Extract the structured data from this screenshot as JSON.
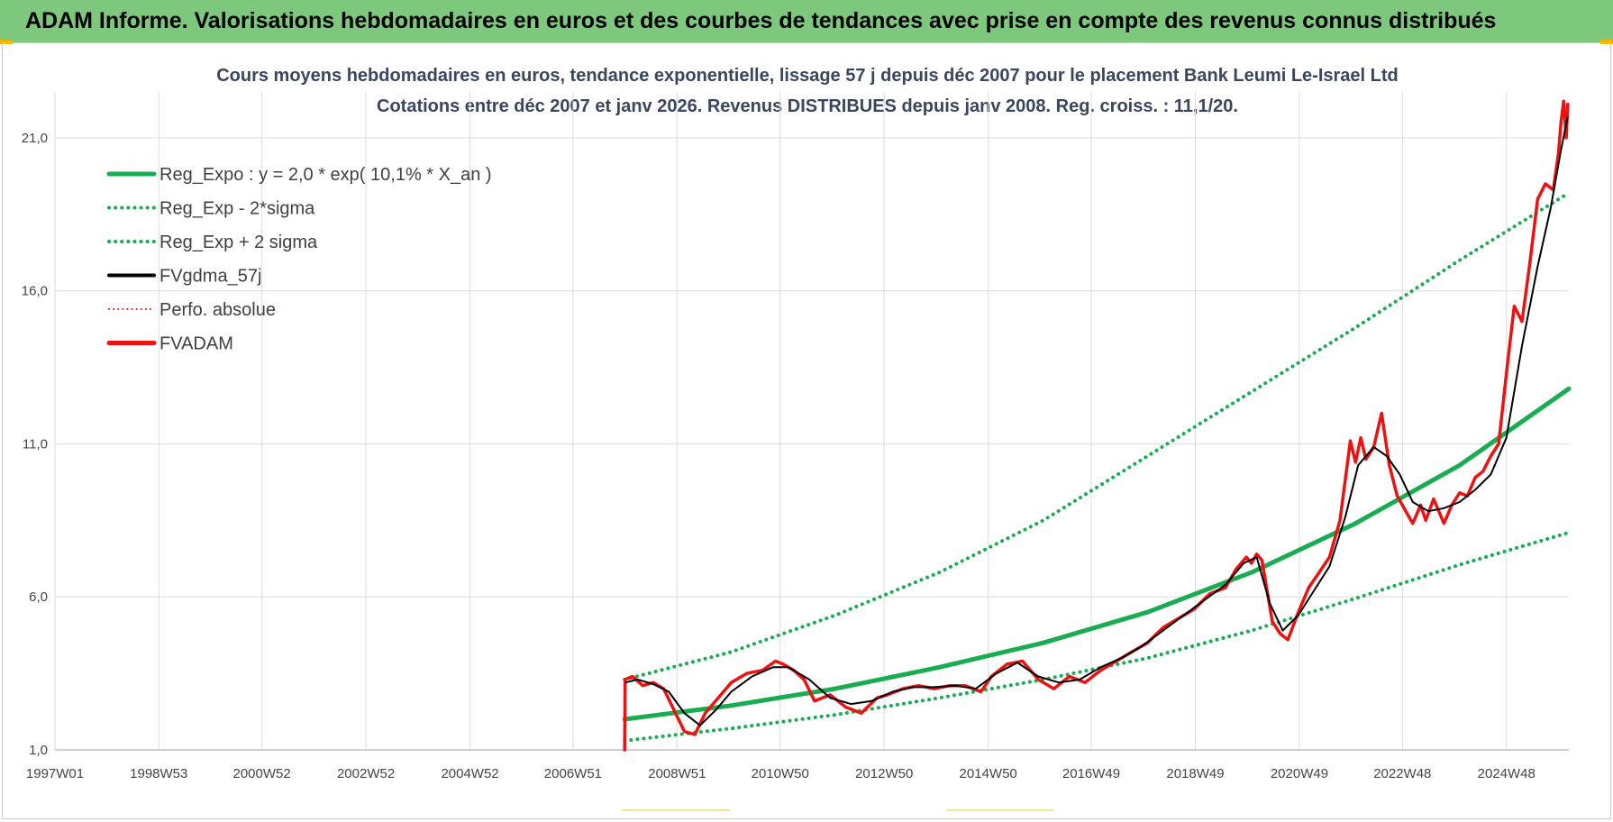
{
  "banner": {
    "title": "ADAM Informe. Valorisations hebdomadaires en euros et des courbes de tendances avec prise en compte des revenus connus distribués"
  },
  "colors": {
    "banner_bg": "#7dc87d",
    "reg_expo": "#1aac50",
    "sigma_bands": "#1aac50",
    "gdma": "#000000",
    "fvadam": "#ee1111",
    "grid": "#dcdcdc"
  },
  "chart_data": {
    "type": "line",
    "title": "Cours moyens hebdomadaires en euros, tendance exponentielle, lissage 57 j depuis déc 2007 pour le placement Bank Leumi Le-Israel Ltd",
    "subtitle": "Cotations entre déc 2007 et janv 2026. Revenus DISTRIBUES depuis janv 2008. Reg. croiss. : 11,1/20.",
    "xlabel": "",
    "ylabel": "",
    "x_tick_labels": [
      "1997W01",
      "1998W53",
      "2000W52",
      "2002W52",
      "2004W52",
      "2006W51",
      "2008W51",
      "2010W50",
      "2012W50",
      "2014W50",
      "2016W49",
      "2018W49",
      "2020W49",
      "2022W48",
      "2024W48"
    ],
    "y_ticks": [
      "1,0",
      "6,0",
      "11,0",
      "16,0",
      "21,0"
    ],
    "ylim": [
      1.0,
      22.5
    ],
    "xlim": [
      1997.0,
      2026.1
    ],
    "grid": true,
    "legend_position": "top-left",
    "legend": [
      {
        "key": "reg_expo",
        "label": "Reg_Expo : y = 2,0 * exp( 10,1% *  X_an )",
        "color": "#1aac50",
        "style": "solid",
        "width": 5
      },
      {
        "key": "reg_minus",
        "label": "Reg_Exp - 2*sigma",
        "color": "#1aac50",
        "style": "dotted",
        "width": 4
      },
      {
        "key": "reg_plus",
        "label": "Reg_Exp + 2 sigma",
        "color": "#1aac50",
        "style": "dotted",
        "width": 4
      },
      {
        "key": "gdma",
        "label": "FVgdma_57j",
        "color": "#000000",
        "style": "solid",
        "width": 4
      },
      {
        "key": "perfo",
        "label": "Perfo. absolue",
        "color": "#ee1111",
        "style": "dotted",
        "width": 2
      },
      {
        "key": "fvadam",
        "label": "FVADAM",
        "color": "#ee1111",
        "style": "solid",
        "width": 5
      }
    ],
    "series": [
      {
        "key": "reg_expo",
        "name": "Reg_Expo : y = 2,0 * exp( 10,1% *  X_an )",
        "x": [
          2007.95,
          2010,
          2012,
          2014,
          2016,
          2018,
          2020,
          2022,
          2024,
          2026.1
        ],
        "y": [
          2.0,
          2.45,
          3.0,
          3.7,
          4.5,
          5.5,
          6.8,
          8.4,
          10.3,
          12.8
        ]
      },
      {
        "key": "reg_minus",
        "name": "Reg_Exp - 2*sigma",
        "x": [
          2007.95,
          2010,
          2012,
          2014,
          2016,
          2018,
          2020,
          2022,
          2024,
          2026.1
        ],
        "y": [
          1.3,
          1.7,
          2.15,
          2.7,
          3.3,
          4.0,
          4.9,
          5.95,
          7.05,
          8.1
        ]
      },
      {
        "key": "reg_plus",
        "name": "Reg_Exp + 2 sigma",
        "x": [
          2007.95,
          2010,
          2012,
          2014,
          2016,
          2018,
          2020,
          2022,
          2024,
          2026.1
        ],
        "y": [
          3.3,
          4.2,
          5.4,
          6.8,
          8.5,
          10.6,
          12.7,
          14.8,
          17.0,
          19.2
        ]
      },
      {
        "key": "fvadam",
        "name": "FVADAM",
        "x": [
          2007.95,
          2007.96,
          2008.1,
          2008.3,
          2008.5,
          2008.7,
          2008.9,
          2009.1,
          2009.3,
          2009.5,
          2009.8,
          2010.0,
          2010.3,
          2010.6,
          2010.85,
          2011.0,
          2011.2,
          2011.4,
          2011.6,
          2011.9,
          2012.2,
          2012.5,
          2012.8,
          2013.0,
          2013.3,
          2013.6,
          2013.9,
          2014.2,
          2014.5,
          2014.8,
          2015.0,
          2015.3,
          2015.6,
          2015.9,
          2016.2,
          2016.5,
          2016.8,
          2017.1,
          2017.4,
          2017.7,
          2018.0,
          2018.3,
          2018.6,
          2018.9,
          2019.2,
          2019.5,
          2019.7,
          2019.8,
          2019.9,
          2020.0,
          2020.1,
          2020.2,
          2020.4,
          2020.55,
          2020.7,
          2020.9,
          2021.1,
          2021.3,
          2021.5,
          2021.7,
          2021.8,
          2021.9,
          2022.0,
          2022.1,
          2022.2,
          2022.35,
          2022.5,
          2022.65,
          2022.8,
          2023.0,
          2023.1,
          2023.25,
          2023.35,
          2023.5,
          2023.7,
          2023.85,
          2024.0,
          2024.15,
          2024.3,
          2024.45,
          2024.6,
          2024.75,
          2024.9,
          2025.05,
          2025.2,
          2025.35,
          2025.5,
          2025.65,
          2025.8,
          2025.9,
          2025.95,
          2026.0,
          2026.05,
          2026.08
        ],
        "y": [
          1.0,
          3.3,
          3.4,
          3.1,
          3.2,
          3.0,
          2.3,
          1.6,
          1.5,
          2.2,
          2.8,
          3.2,
          3.5,
          3.6,
          3.9,
          3.8,
          3.6,
          3.3,
          2.6,
          2.8,
          2.4,
          2.2,
          2.7,
          2.8,
          3.0,
          3.1,
          3.0,
          3.1,
          3.1,
          2.9,
          3.4,
          3.8,
          3.9,
          3.3,
          3.0,
          3.4,
          3.2,
          3.6,
          3.9,
          4.2,
          4.5,
          5.0,
          5.3,
          5.6,
          6.1,
          6.3,
          6.9,
          7.1,
          7.3,
          7.1,
          7.4,
          7.2,
          5.2,
          4.8,
          4.6,
          5.5,
          6.3,
          6.8,
          7.3,
          8.5,
          9.8,
          11.1,
          10.4,
          11.2,
          10.5,
          10.9,
          12.0,
          10.3,
          9.3,
          8.7,
          8.4,
          9.0,
          8.5,
          9.2,
          8.4,
          9.0,
          9.4,
          9.3,
          9.9,
          10.1,
          10.6,
          11.0,
          13.3,
          15.5,
          15.0,
          16.9,
          19.0,
          19.5,
          19.3,
          20.5,
          21.5,
          22.2,
          21.0,
          22.1
        ]
      },
      {
        "key": "gdma",
        "name": "FVgdma_57j",
        "x": [
          2007.96,
          2008.2,
          2008.5,
          2008.8,
          2009.1,
          2009.4,
          2009.7,
          2010.0,
          2010.4,
          2010.8,
          2011.1,
          2011.5,
          2011.9,
          2012.3,
          2012.7,
          2013.1,
          2013.5,
          2013.9,
          2014.3,
          2014.7,
          2015.1,
          2015.5,
          2015.9,
          2016.3,
          2016.7,
          2017.1,
          2017.5,
          2017.9,
          2018.3,
          2018.7,
          2019.1,
          2019.5,
          2019.85,
          2020.1,
          2020.35,
          2020.6,
          2020.9,
          2021.2,
          2021.5,
          2021.8,
          2022.05,
          2022.35,
          2022.6,
          2022.85,
          2023.1,
          2023.4,
          2023.7,
          2024.0,
          2024.3,
          2024.6,
          2024.9,
          2025.2,
          2025.5,
          2025.75,
          2025.95,
          2026.08
        ],
        "y": [
          3.2,
          3.3,
          3.15,
          2.9,
          2.2,
          1.8,
          2.3,
          2.9,
          3.4,
          3.7,
          3.7,
          3.3,
          2.7,
          2.5,
          2.6,
          2.9,
          3.05,
          3.05,
          3.1,
          3.0,
          3.5,
          3.85,
          3.4,
          3.2,
          3.3,
          3.7,
          4.0,
          4.4,
          4.9,
          5.4,
          5.9,
          6.4,
          7.1,
          7.3,
          5.8,
          4.9,
          5.4,
          6.2,
          7.0,
          8.6,
          10.3,
          10.9,
          10.6,
          10.0,
          9.1,
          8.8,
          8.9,
          9.1,
          9.5,
          10.0,
          11.2,
          14.2,
          16.8,
          18.7,
          20.6,
          21.7
        ]
      }
    ]
  }
}
